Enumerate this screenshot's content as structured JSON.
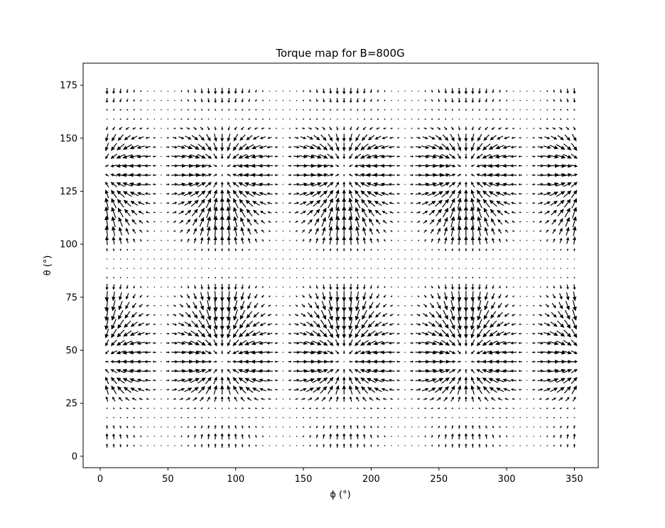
{
  "chart_data": {
    "type": "quiver",
    "title": "Torque map for B=800G",
    "xlabel": "ϕ (°)",
    "ylabel": "θ (°)",
    "xlim": [
      -12.6,
      367.6
    ],
    "ylim": [
      -5.4,
      185.4
    ],
    "xticks": [
      0,
      50,
      100,
      150,
      200,
      250,
      300,
      350
    ],
    "yticks": [
      0,
      25,
      50,
      75,
      100,
      125,
      150,
      175
    ],
    "grid": false,
    "legend": "none",
    "arrow_color": "#000000",
    "field": {
      "phi_range": [
        5,
        350
      ],
      "phi_step": 5,
      "theta_range": [
        5,
        175
      ],
      "theta_step": 4.4,
      "sink_phi": [
        45,
        135,
        225,
        315
      ],
      "sink_theta": [
        55,
        125
      ],
      "node_theta_bands": [
        20,
        90,
        160
      ]
    }
  }
}
